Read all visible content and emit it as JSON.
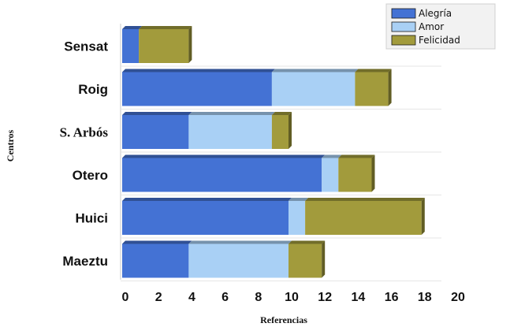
{
  "chart_data": {
    "type": "bar",
    "orientation": "horizontal",
    "stacked": true,
    "categories": [
      "Sensat",
      "Roig",
      "S. Arbós",
      "Otero",
      "Huici",
      "Maeztu"
    ],
    "series": [
      {
        "name": "Alegría",
        "color": "#4472d4",
        "values": [
          1,
          9,
          4,
          12,
          10,
          4
        ]
      },
      {
        "name": "Amor",
        "color": "#a9d0f5",
        "values": [
          0,
          5,
          5,
          1,
          1,
          6
        ]
      },
      {
        "name": "Felicidad",
        "color": "#a29b3c",
        "values": [
          3,
          2,
          1,
          2,
          7,
          2
        ]
      }
    ],
    "xlabel": "Referencias",
    "ylabel": "Centros",
    "xlim": [
      0,
      20
    ],
    "xticks": [
      0,
      2,
      4,
      6,
      8,
      10,
      12,
      14,
      16,
      18,
      20
    ],
    "grid": false,
    "legend_position": "top-right"
  }
}
